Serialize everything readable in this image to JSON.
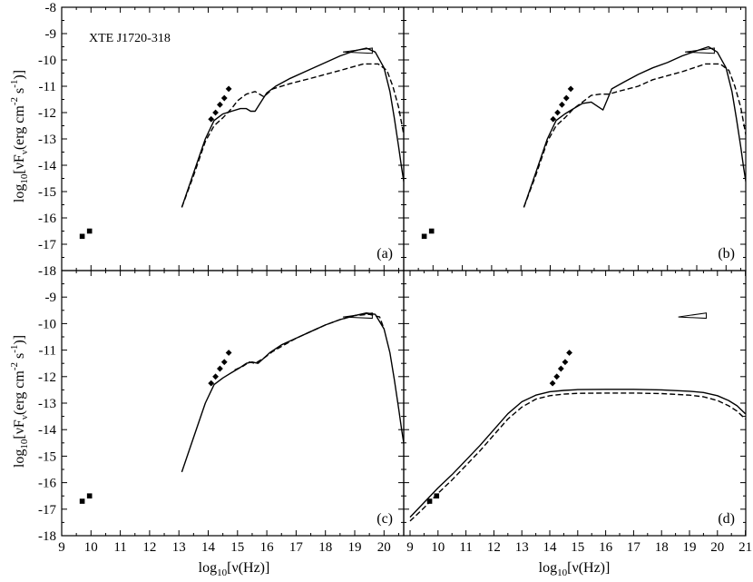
{
  "figure": {
    "ylabel_left_main": "log",
    "ylabel_left_sub": "10",
    "ylabel_left_rest": "[νF",
    "ylabel_nu_sub": "ν",
    "ylabel_units": "(erg cm",
    "ylabel_exp1": "-2",
    "ylabel_s": " s",
    "ylabel_exp2": "-1",
    "ylabel_close": ")]",
    "xlabel_main": "log",
    "xlabel_sub": "10",
    "xlabel_rest": "[ν(Hz)]"
  },
  "chart_data": [
    {
      "type": "line",
      "panel_label": "(a)",
      "title": "XTE J1720-318",
      "xlim": [
        9,
        20.7
      ],
      "ylim": [
        -18,
        -8
      ],
      "series": [
        {
          "style": "solid",
          "x": [
            13.1,
            13.5,
            13.9,
            14.2,
            14.5,
            14.8,
            15.1,
            15.3,
            15.45,
            15.6,
            15.8,
            16.0,
            16.3,
            16.8,
            17.5,
            18.0,
            18.5,
            19.0,
            19.4,
            19.7,
            20.0,
            20.2,
            20.35,
            20.5,
            20.6,
            20.7
          ],
          "y": [
            -15.6,
            -14.3,
            -13.0,
            -12.3,
            -12.05,
            -11.95,
            -11.85,
            -11.85,
            -11.95,
            -11.95,
            -11.6,
            -11.25,
            -11.0,
            -10.7,
            -10.35,
            -10.1,
            -9.85,
            -9.65,
            -9.55,
            -9.7,
            -10.3,
            -11.2,
            -12.2,
            -13.3,
            -14.1,
            -14.8
          ]
        },
        {
          "style": "dashed",
          "x": [
            13.1,
            13.5,
            13.9,
            14.2,
            14.5,
            14.8,
            15.0,
            15.3,
            15.6,
            15.9,
            16.2,
            16.8,
            17.5,
            18.5,
            19.3,
            19.8,
            20.1,
            20.3,
            20.5,
            20.7
          ],
          "y": [
            -15.6,
            -14.4,
            -13.1,
            -12.5,
            -12.2,
            -11.85,
            -11.55,
            -11.3,
            -11.2,
            -11.4,
            -11.1,
            -10.9,
            -10.7,
            -10.4,
            -10.15,
            -10.15,
            -10.4,
            -11.0,
            -11.8,
            -13.0
          ]
        }
      ],
      "points_diamond": [
        [
          14.1,
          -12.25
        ],
        [
          14.25,
          -12.0
        ],
        [
          14.4,
          -11.7
        ],
        [
          14.55,
          -11.45
        ],
        [
          14.7,
          -11.1
        ]
      ],
      "points_square": [
        [
          9.7,
          -16.7
        ],
        [
          9.95,
          -16.5
        ]
      ],
      "bowtie": {
        "x": [
          18.6,
          19.6
        ],
        "y_left": -9.7,
        "y_right_top": -9.55,
        "y_right_bottom": -9.75
      }
    },
    {
      "type": "line",
      "panel_label": "(b)",
      "xlim": [
        9,
        20.7
      ],
      "ylim": [
        -18,
        -8
      ],
      "series": [
        {
          "style": "solid",
          "x": [
            13.1,
            13.5,
            13.9,
            14.2,
            14.5,
            14.8,
            15.1,
            15.4,
            15.6,
            15.8,
            15.95,
            16.1,
            16.5,
            17.0,
            17.5,
            18.0,
            18.5,
            19.0,
            19.4,
            19.7,
            20.0,
            20.2,
            20.35,
            20.5,
            20.6,
            20.7
          ],
          "y": [
            -15.6,
            -14.3,
            -13.0,
            -12.3,
            -12.05,
            -11.85,
            -11.65,
            -11.6,
            -11.75,
            -11.9,
            -11.5,
            -11.1,
            -10.85,
            -10.55,
            -10.3,
            -10.1,
            -9.85,
            -9.65,
            -9.5,
            -9.7,
            -10.3,
            -11.2,
            -12.2,
            -13.3,
            -14.1,
            -14.8
          ]
        },
        {
          "style": "dashed",
          "x": [
            13.1,
            13.5,
            13.9,
            14.2,
            14.5,
            14.8,
            15.1,
            15.4,
            15.7,
            16.0,
            16.3,
            17.0,
            17.5,
            18.5,
            19.3,
            19.8,
            20.1,
            20.3,
            20.5,
            20.7
          ],
          "y": [
            -15.6,
            -14.4,
            -13.1,
            -12.5,
            -12.2,
            -11.85,
            -11.6,
            -11.35,
            -11.3,
            -11.3,
            -11.2,
            -11.0,
            -10.75,
            -10.45,
            -10.15,
            -10.15,
            -10.4,
            -11.0,
            -11.8,
            -13.0
          ]
        }
      ],
      "points_diamond": [
        [
          14.1,
          -12.25
        ],
        [
          14.25,
          -12.0
        ],
        [
          14.4,
          -11.7
        ],
        [
          14.55,
          -11.45
        ],
        [
          14.7,
          -11.1
        ]
      ],
      "points_square": [
        [
          9.7,
          -16.7
        ],
        [
          9.95,
          -16.5
        ]
      ],
      "bowtie": {
        "x": [
          18.6,
          19.6
        ],
        "y_left": -9.7,
        "y_right_top": -9.55,
        "y_right_bottom": -9.75
      }
    },
    {
      "type": "line",
      "panel_label": "(c)",
      "xlim": [
        9,
        20.7
      ],
      "ylim": [
        -18,
        -8
      ],
      "series": [
        {
          "style": "solid",
          "x": [
            13.1,
            13.5,
            13.9,
            14.2,
            14.5,
            14.8,
            15.1,
            15.3,
            15.5,
            15.7,
            15.9,
            16.1,
            16.5,
            17.0,
            17.5,
            18.0,
            18.5,
            19.0,
            19.4,
            19.7,
            20.0,
            20.2,
            20.35,
            20.5,
            20.6,
            20.7
          ],
          "y": [
            -15.6,
            -14.3,
            -13.0,
            -12.3,
            -12.05,
            -11.85,
            -11.65,
            -11.5,
            -11.45,
            -11.5,
            -11.3,
            -11.1,
            -10.8,
            -10.55,
            -10.3,
            -10.05,
            -9.85,
            -9.7,
            -9.6,
            -9.65,
            -10.2,
            -11.1,
            -12.1,
            -13.2,
            -14.0,
            -14.7
          ]
        },
        {
          "style": "dashed",
          "x": [
            14.9,
            15.2,
            15.4,
            15.6,
            15.9,
            16.2,
            16.6,
            17.0,
            17.5,
            18.0,
            18.5,
            19.0,
            19.5,
            19.85,
            20.0
          ],
          "y": [
            -11.75,
            -11.6,
            -11.45,
            -11.5,
            -11.3,
            -11.05,
            -10.8,
            -10.55,
            -10.3,
            -10.05,
            -9.85,
            -9.7,
            -9.65,
            -9.75,
            -10.2
          ]
        }
      ],
      "points_diamond": [
        [
          14.1,
          -12.25
        ],
        [
          14.25,
          -12.0
        ],
        [
          14.4,
          -11.7
        ],
        [
          14.55,
          -11.45
        ],
        [
          14.7,
          -11.1
        ]
      ],
      "points_square": [
        [
          9.7,
          -16.7
        ],
        [
          9.95,
          -16.5
        ]
      ],
      "bowtie": {
        "x": [
          18.6,
          19.6
        ],
        "y_left": -9.75,
        "y_right_top": -9.6,
        "y_right_bottom": -9.8
      }
    },
    {
      "type": "line",
      "panel_label": "(d)",
      "xlim": [
        9,
        21
      ],
      "ylim": [
        -18,
        -8
      ],
      "series": [
        {
          "style": "solid",
          "x": [
            9.0,
            9.5,
            10.0,
            10.5,
            11.0,
            11.5,
            12.0,
            12.5,
            13.0,
            13.5,
            14.0,
            14.5,
            15.0,
            16.0,
            17.0,
            18.0,
            19.0,
            19.5,
            20.0,
            20.4,
            20.7,
            21.0
          ],
          "y": [
            -17.3,
            -16.75,
            -16.2,
            -15.7,
            -15.15,
            -14.6,
            -14.0,
            -13.4,
            -12.95,
            -12.7,
            -12.57,
            -12.52,
            -12.49,
            -12.48,
            -12.48,
            -12.5,
            -12.55,
            -12.6,
            -12.72,
            -12.9,
            -13.1,
            -13.4
          ]
        },
        {
          "style": "dashed",
          "x": [
            9.0,
            9.5,
            10.0,
            10.5,
            11.0,
            11.5,
            12.0,
            12.5,
            13.0,
            13.5,
            14.0,
            14.5,
            15.0,
            16.0,
            17.0,
            18.0,
            19.0,
            19.5,
            20.0,
            20.4,
            20.7,
            21.0
          ],
          "y": [
            -17.45,
            -16.95,
            -16.4,
            -15.9,
            -15.35,
            -14.8,
            -14.2,
            -13.6,
            -13.15,
            -12.85,
            -12.72,
            -12.66,
            -12.63,
            -12.62,
            -12.62,
            -12.64,
            -12.7,
            -12.76,
            -12.9,
            -13.1,
            -13.3,
            -13.6
          ]
        }
      ],
      "points_diamond": [
        [
          14.1,
          -12.25
        ],
        [
          14.25,
          -12.0
        ],
        [
          14.4,
          -11.7
        ],
        [
          14.55,
          -11.45
        ],
        [
          14.7,
          -11.1
        ]
      ],
      "points_square": [
        [
          9.7,
          -16.7
        ],
        [
          9.95,
          -16.5
        ]
      ],
      "bowtie": {
        "x": [
          18.6,
          19.6
        ],
        "y_left": -9.75,
        "y_right_top": -9.6,
        "y_right_bottom": -9.8
      }
    }
  ]
}
